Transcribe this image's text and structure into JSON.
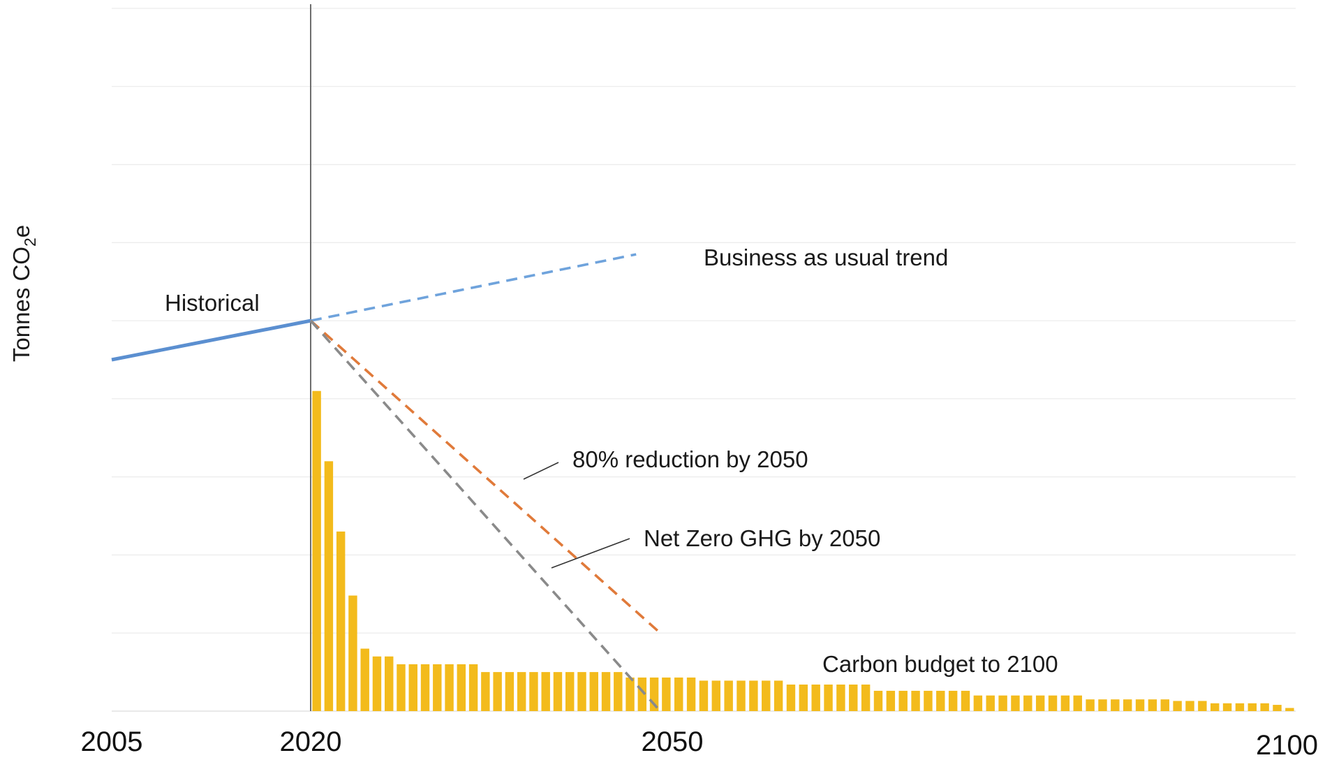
{
  "chart_data": {
    "type": "line",
    "title": "",
    "xlabel": "",
    "ylabel": {
      "prefix": "Tonnes CO",
      "subscript": "2",
      "suffix": "e"
    },
    "x_ticks": [
      2005,
      2020,
      2050,
      2100
    ],
    "xlim": [
      2005,
      2100
    ],
    "ylim": [
      0,
      9
    ],
    "grid": true,
    "y_tick_labels_shown": false,
    "reference_line": {
      "x": 2020,
      "color": "#6e6e6e"
    },
    "series": [
      {
        "name": "Historical",
        "style": "solid",
        "color": "#5b8fd0",
        "x": [
          2005,
          2020
        ],
        "y": [
          4.5,
          5.0
        ]
      },
      {
        "name": "Business as usual trend",
        "style": "dashed",
        "color": "#6fa3dc",
        "x": [
          2020,
          2047
        ],
        "y": [
          5.0,
          5.85
        ]
      },
      {
        "name": "80% reduction by 2050",
        "style": "dashed",
        "color": "#e07a3a",
        "x": [
          2020,
          2049
        ],
        "y": [
          5.0,
          1.0
        ]
      },
      {
        "name": "Net Zero GHG by 2050",
        "style": "dashed",
        "color": "#8a8a8a",
        "x": [
          2020,
          2049
        ],
        "y": [
          5.0,
          0.0
        ]
      }
    ],
    "bars": {
      "name": "Carbon budget to 2100",
      "color": "#f3bb1c",
      "x": [
        2021,
        2022,
        2023,
        2024,
        2025,
        2026,
        2027,
        2028,
        2029,
        2030,
        2031,
        2032,
        2033,
        2034,
        2035,
        2036,
        2037,
        2038,
        2039,
        2040,
        2041,
        2042,
        2043,
        2044,
        2045,
        2046,
        2047,
        2048,
        2049,
        2050,
        2051,
        2052,
        2053,
        2054,
        2055,
        2056,
        2057,
        2058,
        2059,
        2060,
        2061,
        2062,
        2063,
        2064,
        2065,
        2066,
        2067,
        2068,
        2069,
        2070,
        2071,
        2072,
        2073,
        2074,
        2075,
        2076,
        2077,
        2078,
        2079,
        2080,
        2081,
        2082,
        2083,
        2084,
        2085,
        2086,
        2087,
        2088,
        2089,
        2090,
        2091,
        2092,
        2093,
        2094,
        2095,
        2096,
        2097,
        2098,
        2099,
        2100
      ],
      "values": [
        4.1,
        3.2,
        2.3,
        1.48,
        0.8,
        0.7,
        0.7,
        0.6,
        0.6,
        0.6,
        0.6,
        0.6,
        0.6,
        0.6,
        0.5,
        0.5,
        0.5,
        0.5,
        0.5,
        0.5,
        0.5,
        0.5,
        0.5,
        0.5,
        0.5,
        0.5,
        0.43,
        0.43,
        0.43,
        0.43,
        0.43,
        0.43,
        0.39,
        0.39,
        0.39,
        0.39,
        0.39,
        0.39,
        0.39,
        0.34,
        0.34,
        0.34,
        0.34,
        0.34,
        0.34,
        0.34,
        0.26,
        0.26,
        0.26,
        0.26,
        0.26,
        0.26,
        0.26,
        0.26,
        0.2,
        0.2,
        0.2,
        0.2,
        0.2,
        0.2,
        0.2,
        0.2,
        0.2,
        0.15,
        0.15,
        0.15,
        0.15,
        0.15,
        0.15,
        0.15,
        0.13,
        0.13,
        0.13,
        0.1,
        0.1,
        0.1,
        0.1,
        0.1,
        0.08,
        0.04
      ]
    },
    "annotations": [
      {
        "text": "Historical"
      },
      {
        "text": "Business as usual trend"
      },
      {
        "text": "80% reduction by 2050"
      },
      {
        "text": "Net Zero GHG by 2050"
      },
      {
        "text": "Carbon budget to 2100"
      }
    ]
  }
}
